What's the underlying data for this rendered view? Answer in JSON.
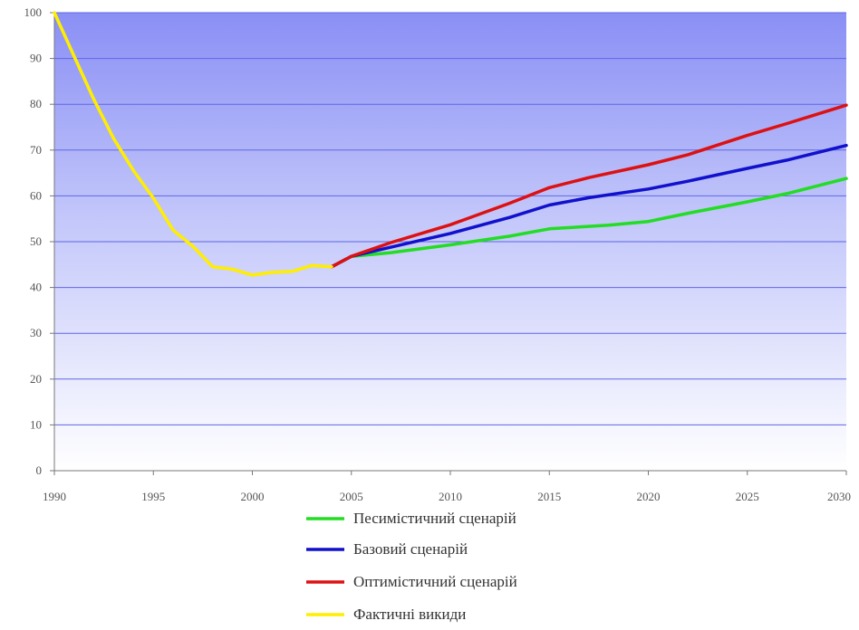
{
  "chart_data": {
    "type": "line",
    "xlim": [
      1990,
      2030
    ],
    "ylim": [
      0,
      100
    ],
    "x_ticks": [
      1990,
      1995,
      2000,
      2005,
      2010,
      2015,
      2020,
      2025,
      2030
    ],
    "y_ticks": [
      0,
      10,
      20,
      30,
      40,
      50,
      60,
      70,
      80,
      90,
      100
    ],
    "x_tick_labels": [
      "1990",
      "1995",
      "2000",
      "2005",
      "2010",
      "2015",
      "2020",
      "2025",
      "2030"
    ],
    "y_tick_labels": [
      "0",
      "10",
      "20",
      "30",
      "40",
      "50",
      "60",
      "70",
      "80",
      "90",
      "100"
    ],
    "grid": "horizontal",
    "legend_position": "bottom",
    "series": [
      {
        "name": "Песимістичний сценарій",
        "color": "#22dd22",
        "points": [
          [
            2004,
            44.5
          ],
          [
            2005,
            46.8
          ],
          [
            2007,
            47.6
          ],
          [
            2010,
            49.3
          ],
          [
            2013,
            51.2
          ],
          [
            2015,
            52.8
          ],
          [
            2018,
            53.6
          ],
          [
            2020,
            54.4
          ],
          [
            2022,
            56.2
          ],
          [
            2025,
            58.7
          ],
          [
            2027,
            60.5
          ],
          [
            2030,
            63.8
          ]
        ]
      },
      {
        "name": "Базовий сценарій",
        "color": "#1111cc",
        "points": [
          [
            2004,
            44.5
          ],
          [
            2005,
            46.8
          ],
          [
            2007,
            48.8
          ],
          [
            2010,
            51.8
          ],
          [
            2013,
            55.3
          ],
          [
            2015,
            58.0
          ],
          [
            2017,
            59.6
          ],
          [
            2020,
            61.5
          ],
          [
            2022,
            63.2
          ],
          [
            2025,
            66.0
          ],
          [
            2027,
            67.8
          ],
          [
            2030,
            71.0
          ]
        ]
      },
      {
        "name": "Оптимістичний сценарій",
        "color": "#dd1111",
        "points": [
          [
            2004,
            44.5
          ],
          [
            2005,
            46.8
          ],
          [
            2007,
            49.8
          ],
          [
            2010,
            53.7
          ],
          [
            2013,
            58.4
          ],
          [
            2015,
            61.8
          ],
          [
            2017,
            64.0
          ],
          [
            2020,
            66.8
          ],
          [
            2022,
            69.0
          ],
          [
            2025,
            73.2
          ],
          [
            2027,
            75.8
          ],
          [
            2030,
            79.8
          ]
        ]
      },
      {
        "name": "Фактичні викиди",
        "color": "#ffee00",
        "points": [
          [
            1990,
            100
          ],
          [
            1991,
            90.5
          ],
          [
            1992,
            81
          ],
          [
            1993,
            72.5
          ],
          [
            1994,
            65.5
          ],
          [
            1995,
            59.5
          ],
          [
            1996,
            52.5
          ],
          [
            1997,
            49
          ],
          [
            1998,
            44.5
          ],
          [
            1999,
            44
          ],
          [
            2000,
            42.7
          ],
          [
            2001,
            43.3
          ],
          [
            2002,
            43.5
          ],
          [
            2003,
            44.8
          ],
          [
            2004,
            44.5
          ]
        ]
      }
    ]
  }
}
